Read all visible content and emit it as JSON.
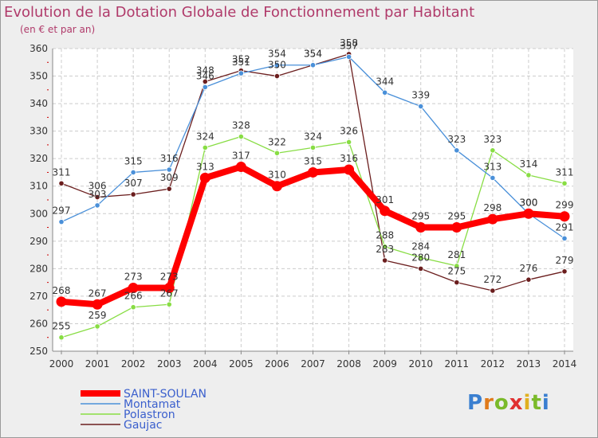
{
  "chart_data": {
    "type": "line",
    "title": "Evolution de la Dotation Globale de Fonctionnement par Habitant",
    "subtitle": "(en € et par an)",
    "categories": [
      "2000",
      "2001",
      "2002",
      "2003",
      "2004",
      "2005",
      "2006",
      "2007",
      "2008",
      "2009",
      "2010",
      "2011",
      "2012",
      "2013",
      "2014"
    ],
    "ylim": [
      250,
      360
    ],
    "yticks": [
      250,
      260,
      270,
      280,
      290,
      300,
      310,
      320,
      330,
      340,
      350,
      360
    ],
    "grid": true,
    "legend_position": "bottom-left",
    "series": [
      {
        "name": "SAINT-SOULAN",
        "color": "#ff0000",
        "values": [
          268,
          267,
          273,
          273,
          313,
          317,
          310,
          315,
          316,
          301,
          295,
          295,
          298,
          300,
          299
        ]
      },
      {
        "name": "Montamat",
        "color": "#4a90d9",
        "values": [
          297,
          303,
          315,
          316,
          346,
          351,
          354,
          354,
          357,
          344,
          339,
          323,
          313,
          300,
          291
        ]
      },
      {
        "name": "Polastron",
        "color": "#88dd44",
        "values": [
          255,
          259,
          266,
          267,
          324,
          328,
          322,
          324,
          326,
          288,
          284,
          281,
          323,
          314,
          311
        ]
      },
      {
        "name": "Gaujac",
        "color": "#6b1e1e",
        "values": [
          311,
          306,
          307,
          309,
          348,
          352,
          350,
          354,
          358,
          283,
          280,
          275,
          272,
          276,
          279
        ]
      }
    ]
  },
  "logo": {
    "letters": [
      "P",
      "r",
      "o",
      "x",
      "i",
      "t",
      "i"
    ],
    "colors": [
      "#3a7fd0",
      "#e07a1a",
      "#7aba2a",
      "#e03030",
      "#e0b020",
      "#7aba2a",
      "#3a7fd0"
    ]
  }
}
